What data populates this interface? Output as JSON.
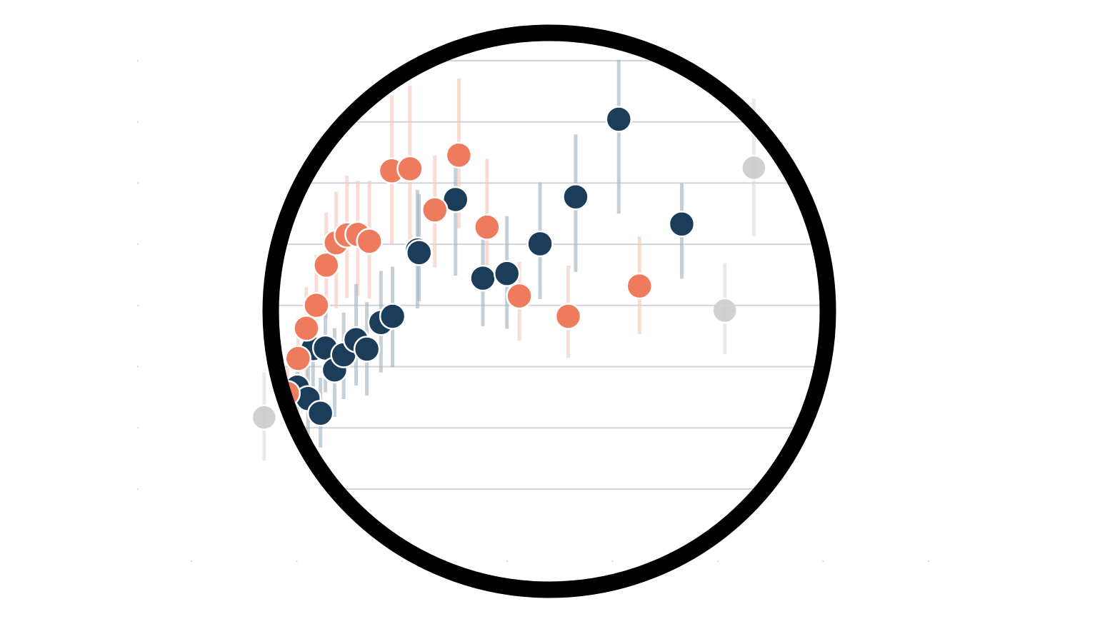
{
  "chart_data": {
    "type": "scatter",
    "title": "",
    "xlabel": "",
    "ylabel": "",
    "xlim": [
      0,
      100
    ],
    "ylim": [
      0,
      100
    ],
    "grid": true,
    "lens_frame": "circle",
    "colors": {
      "series_a": "#1b3d5a",
      "series_b": "#ef7b5e",
      "outside_lens": "#cccccc",
      "grid": "#cfd4d8",
      "frame": "#000000"
    },
    "series": [
      {
        "color_key": "series_a",
        "points": [
          {
            "x": 19.5,
            "y": 31.2,
            "lo": 24.0,
            "hi": 38.6
          },
          {
            "x": 20.8,
            "y": 29.0,
            "lo": 22.1,
            "hi": 36.4
          },
          {
            "x": 22.3,
            "y": 26.2,
            "lo": 19.6,
            "hi": 33.0
          },
          {
            "x": 21.4,
            "y": 38.6,
            "lo": 29.9,
            "hi": 47.0
          },
          {
            "x": 22.9,
            "y": 38.7,
            "lo": 30.2,
            "hi": 46.0
          },
          {
            "x": 24.0,
            "y": 34.5,
            "lo": 25.5,
            "hi": 42.5
          },
          {
            "x": 25.1,
            "y": 37.4,
            "lo": 28.9,
            "hi": 45.5
          },
          {
            "x": 26.6,
            "y": 40.3,
            "lo": 31.5,
            "hi": 51.0
          },
          {
            "x": 27.9,
            "y": 38.5,
            "lo": 29.6,
            "hi": 47.5
          },
          {
            "x": 29.6,
            "y": 43.6,
            "lo": 34.0,
            "hi": 53.5
          },
          {
            "x": 31.0,
            "y": 44.8,
            "lo": 35.0,
            "hi": 54.3
          },
          {
            "x": 34.0,
            "y": 57.5,
            "lo": 46.3,
            "hi": 69.0
          },
          {
            "x": 34.2,
            "y": 57.0,
            "lo": 47.7,
            "hi": 68.2
          },
          {
            "x": 38.6,
            "y": 67.2,
            "lo": 52.6,
            "hi": 76.1
          },
          {
            "x": 41.9,
            "y": 52.1,
            "lo": 42.9,
            "hi": 62.3
          },
          {
            "x": 44.8,
            "y": 53.0,
            "lo": 42.4,
            "hi": 64.0
          },
          {
            "x": 48.8,
            "y": 58.7,
            "lo": 48.1,
            "hi": 70.5
          },
          {
            "x": 53.1,
            "y": 67.7,
            "lo": 53.3,
            "hi": 79.7
          },
          {
            "x": 58.3,
            "y": 82.6,
            "lo": 64.5,
            "hi": 94.0
          },
          {
            "x": 65.9,
            "y": 62.5,
            "lo": 52.0,
            "hi": 70.3
          }
        ]
      },
      {
        "color_key": "series_b",
        "points": [
          {
            "x": 18.3,
            "y": 30.0,
            "lo": 24.8,
            "hi": 35.0
          },
          {
            "x": 19.6,
            "y": 36.7,
            "lo": 28.2,
            "hi": 44.4
          },
          {
            "x": 20.6,
            "y": 42.5,
            "lo": 33.2,
            "hi": 50.4
          },
          {
            "x": 21.8,
            "y": 46.9,
            "lo": 36.5,
            "hi": 56.6
          },
          {
            "x": 23.0,
            "y": 54.6,
            "lo": 44.5,
            "hi": 64.7
          },
          {
            "x": 24.2,
            "y": 58.9,
            "lo": 46.3,
            "hi": 68.7
          },
          {
            "x": 25.5,
            "y": 60.4,
            "lo": 48.3,
            "hi": 71.8
          },
          {
            "x": 26.8,
            "y": 60.5,
            "lo": 48.8,
            "hi": 70.8
          },
          {
            "x": 28.2,
            "y": 59.2,
            "lo": 48.2,
            "hi": 70.8
          },
          {
            "x": 30.9,
            "y": 72.7,
            "lo": 58.6,
            "hi": 87.1
          },
          {
            "x": 33.1,
            "y": 73.1,
            "lo": 59.5,
            "hi": 89.1
          },
          {
            "x": 36.1,
            "y": 65.2,
            "lo": 54.2,
            "hi": 75.6
          },
          {
            "x": 39.0,
            "y": 75.7,
            "lo": 61.7,
            "hi": 90.4
          },
          {
            "x": 42.4,
            "y": 61.9,
            "lo": 50.5,
            "hi": 75.0
          },
          {
            "x": 46.3,
            "y": 48.7,
            "lo": 40.1,
            "hi": 55.2
          },
          {
            "x": 52.2,
            "y": 44.8,
            "lo": 36.8,
            "hi": 54.5
          },
          {
            "x": 60.8,
            "y": 50.6,
            "lo": 41.4,
            "hi": 60.1
          }
        ]
      },
      {
        "color_key": "outside_lens",
        "points": [
          {
            "x": 15.5,
            "y": 25.4,
            "lo": 17.1,
            "hi": 34.0
          },
          {
            "x": 71.1,
            "y": 45.9,
            "lo": 37.5,
            "hi": 55.0
          },
          {
            "x": 74.6,
            "y": 73.3,
            "lo": 60.1,
            "hi": 86.6
          }
        ]
      }
    ]
  }
}
